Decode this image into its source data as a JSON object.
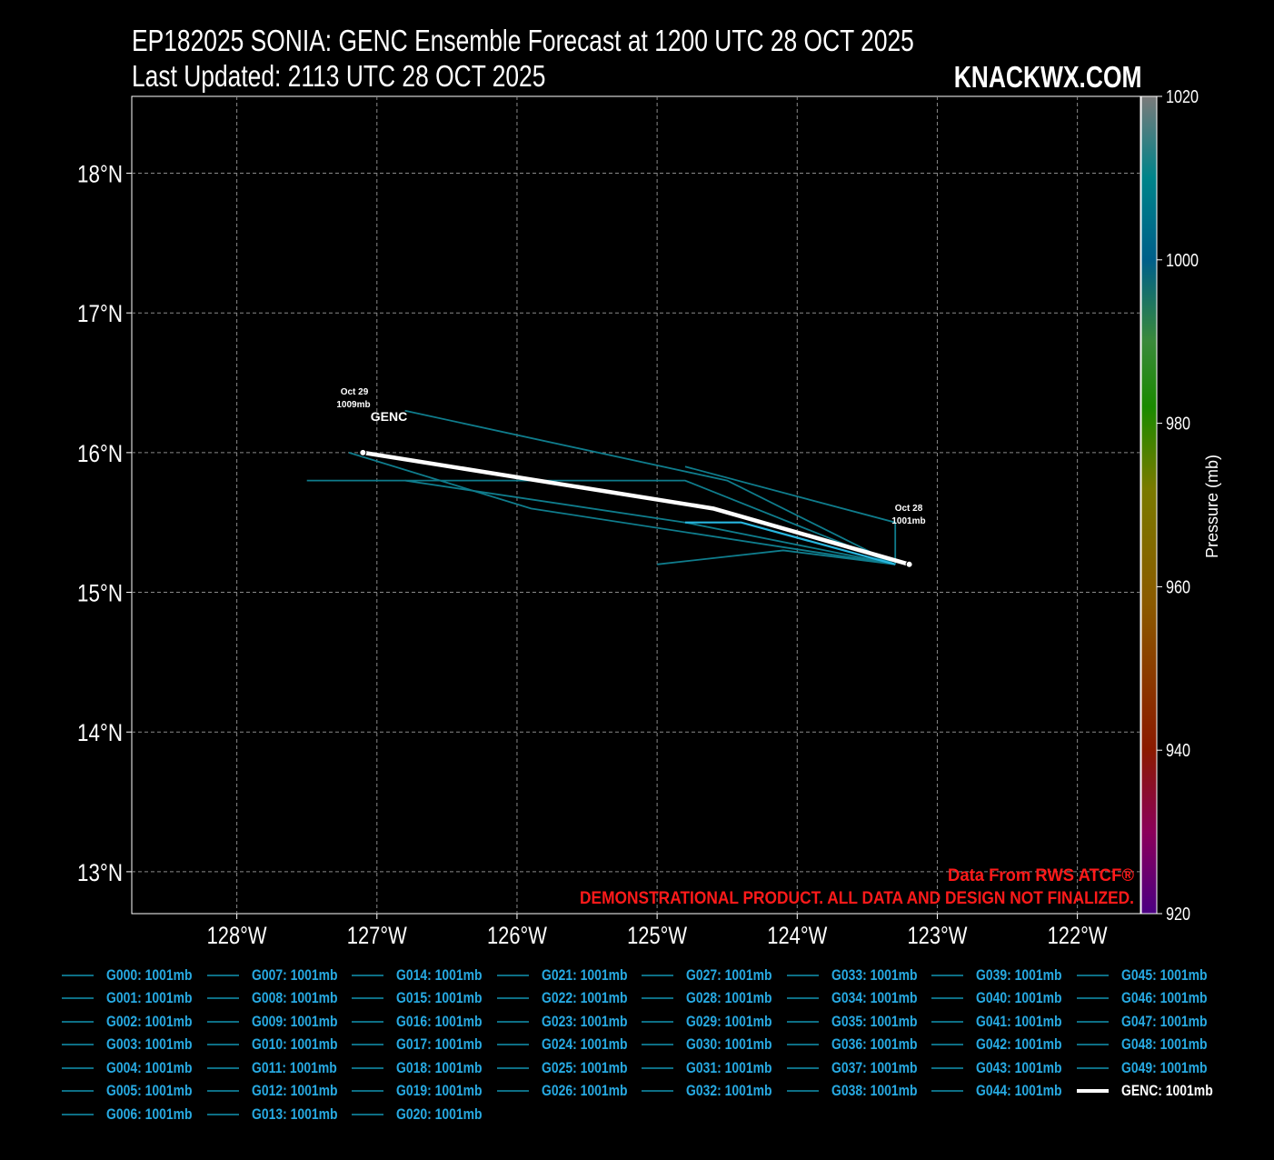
{
  "header": {
    "title": "EP182025 SONIA: GENC Ensemble Forecast at 1200 UTC 28 OCT 2025",
    "updated": "Last Updated: 2113 UTC 28 OCT 2025",
    "brand": "KNACKWX.COM"
  },
  "map": {
    "lon_range": [
      -128.75,
      -121.55
    ],
    "lat_range": [
      12.7,
      18.55
    ],
    "lat_ticks": [
      13,
      14,
      15,
      16,
      17,
      18
    ],
    "lat_tick_labels": [
      "13°N",
      "14°N",
      "15°N",
      "16°N",
      "17°N",
      "18°N"
    ],
    "lon_ticks": [
      -128,
      -127,
      -126,
      -125,
      -124,
      -123,
      -122
    ],
    "lon_tick_labels": [
      "128°W",
      "127°W",
      "126°W",
      "125°W",
      "124°W",
      "123°W",
      "122°W"
    ],
    "grid": true
  },
  "colorbar": {
    "label": "Pressure (mb)",
    "range": [
      920,
      1020
    ],
    "ticks": [
      920,
      940,
      960,
      980,
      1000,
      1020
    ],
    "tick_labels": [
      "920",
      "940",
      "960",
      "980",
      "1000",
      "1020"
    ]
  },
  "annotations": {
    "start_date": "Oct 28",
    "start_pressure": "1001mb",
    "end_date": "Oct 29",
    "end_pressure": "1009mb",
    "genc_label": "GENC",
    "credit": "Data From RWS ATCF®",
    "disclaimer": "DEMONSTRATIONAL PRODUCT. ALL DATA AND DESIGN NOT FINALIZED."
  },
  "chart_data": {
    "type": "line",
    "x_unit": "longitude",
    "y_unit": "latitude",
    "genc_track": [
      [
        -123.2,
        15.2
      ],
      [
        -124.6,
        15.6
      ],
      [
        -127.1,
        16.0
      ]
    ],
    "member_tracks": [
      [
        [
          -123.3,
          15.2
        ],
        [
          -124.5,
          15.8
        ],
        [
          -126.8,
          16.3
        ]
      ],
      [
        [
          -123.3,
          15.2
        ],
        [
          -124.8,
          15.8
        ],
        [
          -127.5,
          15.8
        ]
      ],
      [
        [
          -123.3,
          15.2
        ],
        [
          -124.8,
          15.5
        ],
        [
          -126.8,
          15.8
        ]
      ],
      [
        [
          -123.3,
          15.2
        ],
        [
          -125.9,
          15.6
        ],
        [
          -127.2,
          16.0
        ]
      ],
      [
        [
          -123.3,
          15.2
        ],
        [
          -124.1,
          15.3
        ],
        [
          -125.0,
          15.2
        ]
      ],
      [
        [
          -123.3,
          15.2
        ],
        [
          -124.4,
          15.5
        ],
        [
          -124.8,
          15.5
        ]
      ],
      [
        [
          -123.3,
          15.2
        ],
        [
          -123.3,
          15.5
        ],
        [
          -124.8,
          15.9
        ]
      ]
    ],
    "legend": [
      "G000: 1001mb",
      "G001: 1001mb",
      "G002: 1001mb",
      "G003: 1001mb",
      "G004: 1001mb",
      "G005: 1001mb",
      "G006: 1001mb",
      "G007: 1001mb",
      "G008: 1001mb",
      "G009: 1001mb",
      "G010: 1001mb",
      "G011: 1001mb",
      "G012: 1001mb",
      "G013: 1001mb",
      "G014: 1001mb",
      "G015: 1001mb",
      "G016: 1001mb",
      "G017: 1001mb",
      "G018: 1001mb",
      "G019: 1001mb",
      "G020: 1001mb",
      "G021: 1001mb",
      "G022: 1001mb",
      "G023: 1001mb",
      "G024: 1001mb",
      "G025: 1001mb",
      "G026: 1001mb",
      "G027: 1001mb",
      "G028: 1001mb",
      "G029: 1001mb",
      "G030: 1001mb",
      "G031: 1001mb",
      "G032: 1001mb",
      "G033: 1001mb",
      "G034: 1001mb",
      "G035: 1001mb",
      "G036: 1001mb",
      "G037: 1001mb",
      "G038: 1001mb",
      "G039: 1001mb",
      "G040: 1001mb",
      "G041: 1001mb",
      "G042: 1001mb",
      "G043: 1001mb",
      "G044: 1001mb",
      "G045: 1001mb",
      "G046: 1001mb",
      "G047: 1001mb",
      "G048: 1001mb",
      "G049: 1001mb",
      "GENC: 1001mb"
    ]
  },
  "colors": {
    "member_track": "#0f7c8c",
    "member_track_bright": "#27b6df",
    "genc_track": "#ffffff",
    "legend_text": "#27a9e1",
    "disclaimer": "#ff1a1a",
    "grid": "#8a8a8a"
  }
}
